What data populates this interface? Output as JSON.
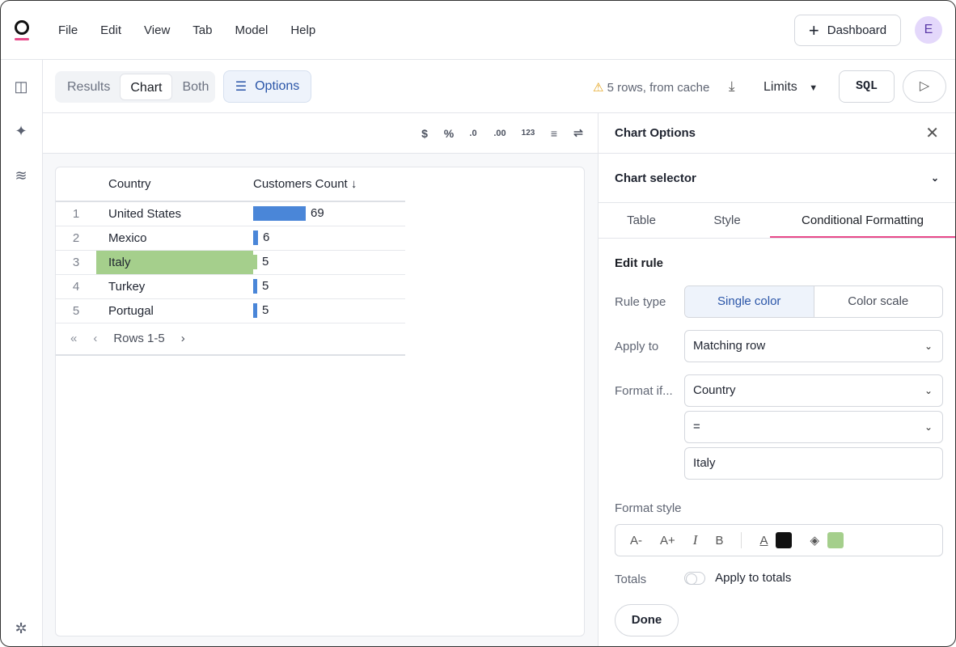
{
  "menu": [
    "File",
    "Edit",
    "View",
    "Tab",
    "Model",
    "Help"
  ],
  "header": {
    "dashboard_label": "Dashboard",
    "avatar_initial": "E"
  },
  "toolbar": {
    "views": [
      "Results",
      "Chart",
      "Both"
    ],
    "active_view": "Chart",
    "options_label": "Options",
    "cache_status": "5 rows, from cache",
    "limits_label": "Limits",
    "sql_label": "SQL"
  },
  "format_icons": [
    "$",
    "%",
    ".0",
    ".00",
    "123",
    "align",
    "wrap"
  ],
  "table": {
    "columns": [
      "Country",
      "Customers Count ↓"
    ],
    "rows": [
      {
        "n": "1",
        "country": "United States",
        "count": "69",
        "value": 69,
        "highlight": false
      },
      {
        "n": "2",
        "country": "Mexico",
        "count": "6",
        "value": 6,
        "highlight": false
      },
      {
        "n": "3",
        "country": "Italy",
        "count": "5",
        "value": 5,
        "highlight": true
      },
      {
        "n": "4",
        "country": "Turkey",
        "count": "5",
        "value": 5,
        "highlight": false
      },
      {
        "n": "5",
        "country": "Portugal",
        "count": "5",
        "value": 5,
        "highlight": false
      }
    ],
    "pager": "Rows 1-5",
    "bar_color": "#4a86d8",
    "highlight_color": "#a5cf8c"
  },
  "panel": {
    "title": "Chart Options",
    "chart_selector": "Chart selector",
    "tabs": [
      "Table",
      "Style",
      "Conditional Formatting"
    ],
    "edit_rule": "Edit rule",
    "rule_type_label": "Rule type",
    "rule_types": [
      "Single color",
      "Color scale"
    ],
    "apply_to_label": "Apply to",
    "apply_to": "Matching row",
    "format_if_label": "Format if...",
    "format_field": "Country",
    "operator": "=",
    "value": "Italy",
    "format_style_label": "Format style",
    "style_buttons": [
      "A-",
      "A+",
      "I",
      "B"
    ],
    "text_color": "#111111",
    "fill_color": "#a5cf8c",
    "totals_label": "Totals",
    "apply_totals": "Apply to totals",
    "done": "Done"
  }
}
